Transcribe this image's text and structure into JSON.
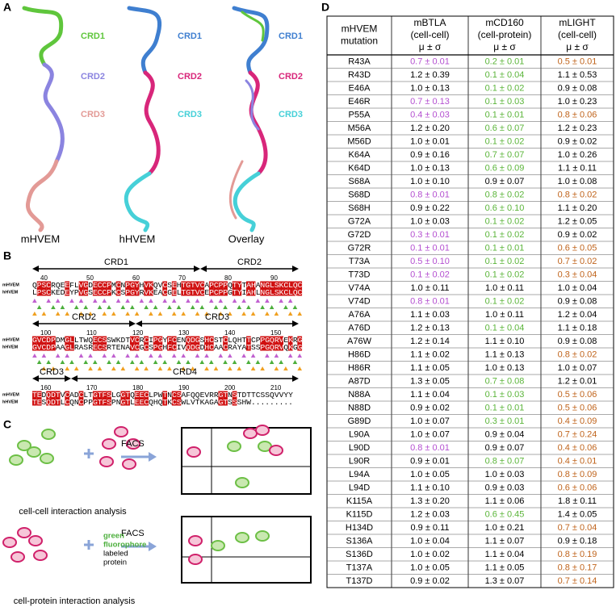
{
  "panels": {
    "A": {
      "label": "A",
      "structures": [
        {
          "name": "mHVEM",
          "crds": [
            "CRD1",
            "CRD2",
            "CRD3"
          ],
          "colors": [
            "#5fc63c",
            "#8b84e0",
            "#e39a96"
          ]
        },
        {
          "name": "hHVEM",
          "crds": [
            "CRD1",
            "CRD2",
            "CRD3"
          ],
          "colors": [
            "#3f7fd0",
            "#d8267a",
            "#46d0d8"
          ]
        },
        {
          "name": "Overlay",
          "crds": [
            "CRD1",
            "CRD2",
            "CRD3"
          ],
          "colors": [
            "#3f7fd0",
            "#d8267a",
            "#46d0d8"
          ]
        }
      ]
    },
    "B": {
      "label": "B",
      "species": [
        "mHVEM",
        "hHVEM"
      ],
      "blocks": [
        {
          "domains": [
            "CRD1",
            "CRD2"
          ],
          "numbers": [
            40,
            50,
            60,
            70,
            80,
            90
          ],
          "mouse": "QPSCRQEEFLVGDECCPMCNPGYHVKQVCSEHTGTVCAPCPPQTYTAHANGLSKCLQC",
          "human": "LPSCKEDEYPVGSECCPKCSPGYRVKEACGELTGTVCEPCPPGTYIAHLNGLSKCLQC"
        },
        {
          "domains": [
            "CRD2",
            "CRD3"
          ],
          "numbers": [
            100,
            110,
            120,
            130,
            140,
            150
          ],
          "mouse": "GVCDPDMGLLTWQECSSWKDTVCRCIPGYFCENQDGSHCSTCLQHTTCPPGQRVEKRG",
          "human": "GVCDPAAGLRASRECSRTENAVCGCSPGHFCIVQDGDHCAACRAYATSSPGQRVQKGG"
        },
        {
          "domains": [
            "CRD3",
            "CRD4"
          ],
          "numbers": [
            160,
            170,
            180,
            190,
            200,
            210
          ],
          "mouse": "TEDQDTVCADCLTGTFSLGGTQEECLPWTNCSAFQQEVRRGTNSTDTTCSSQVVYY",
          "human": "TESQDTLCQNCPPGTFSPNGTLEECQHQTKCSWLVTKAGAGTSSSHW........."
        }
      ]
    },
    "C": {
      "label": "C",
      "facs": "FACS",
      "cell_cell": "cell-cell interaction analysis",
      "fluor_line1": "green",
      "fluor_line2": "fluorophore",
      "fluor_line3": "labeled",
      "fluor_line4": "protein",
      "cell_protein": "cell-protein interaction analysis"
    }
  },
  "table": {
    "label": "D",
    "header": [
      [
        "mHVEM",
        "mutation"
      ],
      [
        "mBTLA",
        "(cell-cell)",
        "μ ± σ"
      ],
      [
        "mCD160",
        "(cell-protein)",
        "μ ± σ"
      ],
      [
        "mLIGHT",
        "(cell-cell)",
        "μ ± σ"
      ]
    ],
    "palette": {
      "k": "#000000",
      "p": "#b44fd0",
      "g": "#5bb53a",
      "o": "#c0641c"
    },
    "rows": [
      [
        "R43A",
        "0.7 ± 0.01",
        "0.2 ± 0.01",
        "0.5 ± 0.01"
      ],
      [
        "R43D",
        "1.2 ± 0.39",
        "0.1 ± 0.04",
        "1.1 ± 0.53"
      ],
      [
        "E46A",
        "1.0 ± 0.13",
        "0.1 ± 0.02",
        "0.9 ± 0.08"
      ],
      [
        "E46R",
        "0.7 ± 0.13",
        "0.1 ± 0.03",
        "1.0 ± 0.23"
      ],
      [
        "P55A",
        "0.4 ± 0.03",
        "0.1 ± 0.01",
        "0.8 ± 0.06"
      ],
      [
        "M56A",
        "1.2 ± 0.20",
        "0.6 ± 0.07",
        "1.2 ± 0.23"
      ],
      [
        "M56D",
        "1.0 ± 0.01",
        "0.1 ± 0.02",
        "0.9 ± 0.02"
      ],
      [
        "K64A",
        "0.9 ± 0.16",
        "0.7 ± 0.07",
        "1.0 ± 0.26"
      ],
      [
        "K64D",
        "1.0 ± 0.13",
        "0.6 ± 0.09",
        "1.1 ± 0.11"
      ],
      [
        "S68A",
        "1.0 ± 0.10",
        "0.9 ± 0.07",
        "1.0 ± 0.08"
      ],
      [
        "S68D",
        "0.8 ± 0.01",
        "0.8 ± 0.02",
        "0.8 ± 0.02"
      ],
      [
        "S68H",
        "0.9 ± 0.22",
        "0.6 ± 0.10",
        "1.1 ± 0.20"
      ],
      [
        "G72A",
        "1.0 ± 0.03",
        "0.1 ± 0.02",
        "1.2 ± 0.05"
      ],
      [
        "G72D",
        "0.3 ± 0.01",
        "0.1 ± 0.02",
        "0.9 ± 0.02"
      ],
      [
        "G72R",
        "0.1 ± 0.01",
        "0.1 ± 0.01",
        "0.6 ± 0.05"
      ],
      [
        "T73A",
        "0.5 ± 0.10",
        "0.1 ± 0.02",
        "0.7 ± 0.02"
      ],
      [
        "T73D",
        "0.1 ± 0.02",
        "0.1 ± 0.02",
        "0.3 ± 0.04"
      ],
      [
        "V74A",
        "1.0 ± 0.11",
        "1.0 ± 0.11",
        "1.0 ± 0.04"
      ],
      [
        "V74D",
        "0.8 ± 0.01",
        "0.1 ± 0.02",
        "0.9 ± 0.08"
      ],
      [
        "A76A",
        "1.1 ± 0.03",
        "1.0 ± 0.11",
        "1.2 ± 0.04"
      ],
      [
        "A76D",
        "1.2 ± 0.13",
        "0.1 ± 0.04",
        "1.1 ± 0.18"
      ],
      [
        "A76W",
        "1.2 ± 0.14",
        "1.1 ± 0.10",
        "0.9 ± 0.08"
      ],
      [
        "H86D",
        "1.1 ± 0.02",
        "1.1 ± 0.13",
        "0.8 ± 0.02"
      ],
      [
        "H86R",
        "1.1 ± 0.05",
        "1.0 ± 0.13",
        "1.0 ± 0.07"
      ],
      [
        "A87D",
        "1.3 ± 0.05",
        "0.7 ± 0.08",
        "1.2 ± 0.01"
      ],
      [
        "N88A",
        "1.1 ± 0.04",
        "0.1 ± 0.03",
        "0.5 ± 0.06"
      ],
      [
        "N88D",
        "0.9 ± 0.02",
        "0.1 ± 0.01",
        "0.5 ± 0.06"
      ],
      [
        "G89D",
        "1.0 ± 0.07",
        "0.3 ± 0.01",
        "0.4 ± 0.09"
      ],
      [
        "L90A",
        "1.0 ± 0.07",
        "0.9 ± 0.04",
        "0.7 ± 0.24"
      ],
      [
        "L90D",
        "0.8 ± 0.01",
        "0.9 ± 0.07",
        "0.4 ± 0.06"
      ],
      [
        "L90R",
        "0.9 ± 0.01",
        "0.8 ± 0.07",
        "0.4 ± 0.01"
      ],
      [
        "L94A",
        "1.0 ± 0.05",
        "1.0 ± 0.03",
        "0.8 ± 0.09"
      ],
      [
        "L94D",
        "1.1 ± 0.10",
        "0.9 ± 0.03",
        "0.6 ± 0.06"
      ],
      [
        "K115A",
        "1.3 ± 0.20",
        "1.1 ± 0.06",
        "1.8 ± 0.11"
      ],
      [
        "K115D",
        "1.2 ± 0.03",
        "0.6 ± 0.45",
        "1.4 ± 0.05"
      ],
      [
        "H134D",
        "0.9 ± 0.11",
        "1.0 ± 0.21",
        "0.7 ± 0.04"
      ],
      [
        "S136A",
        "1.0 ± 0.04",
        "1.1 ± 0.07",
        "0.9 ± 0.18"
      ],
      [
        "S136D",
        "1.0 ± 0.02",
        "1.1 ± 0.04",
        "0.8 ± 0.19"
      ],
      [
        "T137A",
        "1.0 ± 0.05",
        "1.1 ± 0.05",
        "0.8 ± 0.17"
      ],
      [
        "T137D",
        "0.9 ± 0.02",
        "1.3 ± 0.07",
        "0.7 ± 0.14"
      ]
    ],
    "row_colors": [
      "kpgo",
      "kkgk",
      "kkgk",
      "kpgk",
      "kpgo",
      "kkgk",
      "kkgk",
      "kkgk",
      "kkgk",
      "kkkk",
      "kpgo",
      "kkgk",
      "kkgk",
      "kpgk",
      "kpgo",
      "kpgo",
      "kpgo",
      "kkkk",
      "kpgk",
      "kkkk",
      "kkgk",
      "kkkk",
      "kkko",
      "kkkk",
      "kkgk",
      "kkgo",
      "kkgo",
      "kkgo",
      "kkko",
      "kpko",
      "kkgo",
      "kkko",
      "kkko",
      "kkkk",
      "kkgk",
      "kkko",
      "kkkk",
      "kkko",
      "kkko",
      "kkko"
    ]
  }
}
